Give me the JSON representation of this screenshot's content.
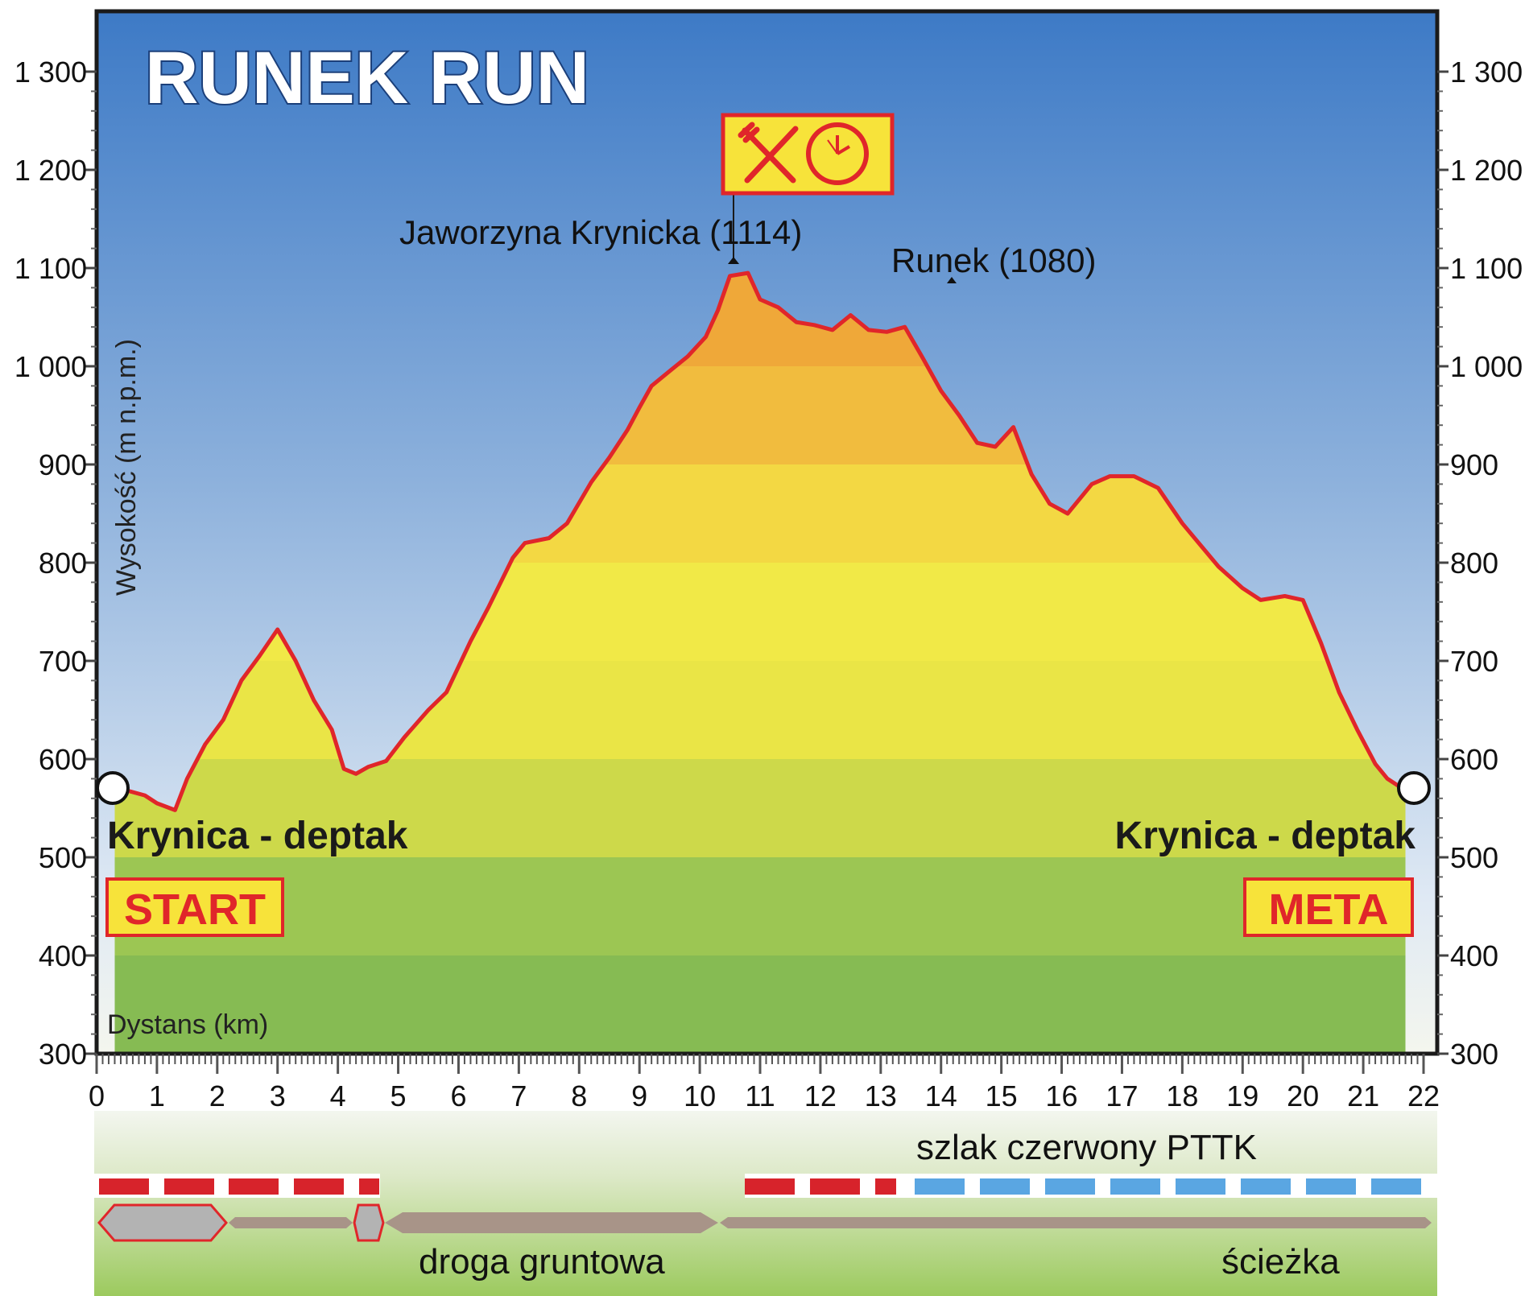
{
  "chart_data": {
    "type": "area",
    "title": "RUNEK RUN",
    "ylabel": "Wysokość (m n.p.m.)",
    "xlabel": "Dystans (km)",
    "xlim": [
      0,
      22
    ],
    "ylim": [
      300,
      1370
    ],
    "x_ticks": [
      0,
      1,
      2,
      3,
      4,
      5,
      6,
      7,
      8,
      9,
      10,
      11,
      12,
      13,
      14,
      15,
      16,
      17,
      18,
      19,
      20,
      21,
      22
    ],
    "y_ticks": [
      300,
      400,
      500,
      600,
      700,
      800,
      900,
      1000,
      1100,
      1200,
      1300
    ],
    "y_tick_labels": [
      "300",
      "400",
      "500",
      "600",
      "700",
      "800",
      "900",
      "1 000",
      "1 100",
      "1 200",
      "1 300"
    ],
    "series": [
      {
        "x": [
          0.3,
          0.5,
          0.8,
          1.0,
          1.3,
          1.5,
          1.8,
          2.1,
          2.4,
          2.7,
          3.0,
          3.3,
          3.6,
          3.9,
          4.1,
          4.3,
          4.5,
          4.8,
          5.1,
          5.5,
          5.8,
          6.2,
          6.5,
          6.9,
          7.1,
          7.5,
          7.8,
          8.2,
          8.5,
          8.8,
          9.0,
          9.2,
          9.5,
          9.8,
          10.1,
          10.3,
          10.5,
          10.8,
          11.0,
          11.3,
          11.6,
          11.9,
          12.2,
          12.5,
          12.8,
          13.1,
          13.4,
          13.7,
          14.0,
          14.3,
          14.6,
          14.9,
          15.2,
          15.5,
          15.8,
          16.1,
          16.5,
          16.8,
          17.2,
          17.6,
          18.0,
          18.3,
          18.6,
          19.0,
          19.3,
          19.7,
          20.0,
          20.3,
          20.6,
          20.9,
          21.2,
          21.4,
          21.7
        ],
        "y": [
          570,
          568,
          563,
          555,
          548,
          580,
          615,
          640,
          680,
          705,
          732,
          700,
          660,
          630,
          590,
          585,
          592,
          598,
          622,
          650,
          668,
          720,
          755,
          805,
          820,
          825,
          840,
          882,
          907,
          935,
          958,
          980,
          995,
          1010,
          1030,
          1057,
          1092,
          1095,
          1068,
          1060,
          1045,
          1042,
          1037,
          1052,
          1037,
          1035,
          1040,
          1008,
          975,
          950,
          922,
          918,
          938,
          890,
          860,
          850,
          880,
          888,
          888,
          876,
          840,
          818,
          796,
          774,
          762,
          766,
          762,
          718,
          668,
          630,
          595,
          580,
          568
        ]
      }
    ],
    "annotations": {
      "peak1": "Jaworzyna Krynicka (1114)",
      "peak2": "Runek (1080)",
      "start_place": "Krynica - deptak",
      "end_place": "Krynica - deptak",
      "start_label": "START",
      "end_label": "META"
    },
    "legend": {
      "trail": "szlak czerwony PTTK",
      "road": "droga gruntowa",
      "path": "ścieżka"
    },
    "grid": false
  }
}
